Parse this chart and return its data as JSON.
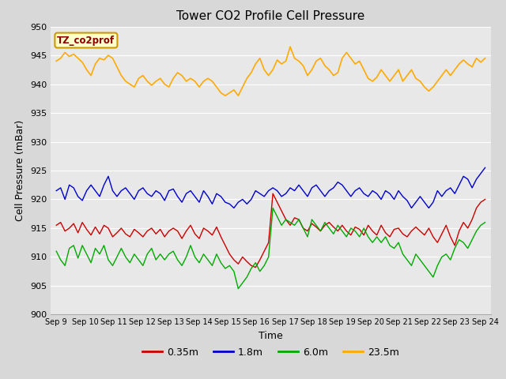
{
  "title": "Tower CO2 Profile Cell Pressure",
  "xlabel": "Time",
  "ylabel": "Cell Pressure (mBar)",
  "ylim": [
    900,
    950
  ],
  "yticks": [
    900,
    905,
    910,
    915,
    920,
    925,
    930,
    935,
    940,
    945,
    950
  ],
  "xtick_labels": [
    "Sep 9",
    "Sep 10",
    "Sep 11",
    "Sep 12",
    "Sep 13",
    "Sep 14",
    "Sep 15",
    "Sep 16",
    "Sep 17",
    "Sep 18",
    "Sep 19",
    "Sep 20",
    "Sep 21",
    "Sep 22",
    "Sep 23",
    "Sep 24"
  ],
  "colors": {
    "0.35m": "#cc0000",
    "1.8m": "#0000cc",
    "6.0m": "#00aa00",
    "23.5m": "#ffaa00"
  },
  "legend_label": "TZ_co2prof",
  "legend_box_color": "#ffffcc",
  "legend_box_edge": "#cc9900",
  "background_color": "#e8e8e8",
  "grid_color": "#ffffff",
  "series_35": [
    915.5,
    916.0,
    914.5,
    915.0,
    915.8,
    914.2,
    916.0,
    914.8,
    913.8,
    915.2,
    914.0,
    915.5,
    915.0,
    913.5,
    914.2,
    915.0,
    914.0,
    913.5,
    914.8,
    914.2,
    913.5,
    914.5,
    915.0,
    914.0,
    914.8,
    913.5,
    914.5,
    915.0,
    914.5,
    913.2,
    914.5,
    915.5,
    914.0,
    913.2,
    915.0,
    914.5,
    913.8,
    915.2,
    913.5,
    912.0,
    910.5,
    909.5,
    908.8,
    910.0,
    909.2,
    908.5,
    908.2,
    909.5,
    911.0,
    912.5,
    921.0,
    919.5,
    918.0,
    916.5,
    915.5,
    916.8,
    916.5,
    915.0,
    914.5,
    915.8,
    915.2,
    914.5,
    915.5,
    916.0,
    915.2,
    914.5,
    915.5,
    914.5,
    913.8,
    915.2,
    914.8,
    913.8,
    915.5,
    914.5,
    913.8,
    915.5,
    914.2,
    913.5,
    914.8,
    915.0,
    914.0,
    913.5,
    914.5,
    915.2,
    914.5,
    913.8,
    915.0,
    913.5,
    912.5,
    914.0,
    915.5,
    913.5,
    912.0,
    914.5,
    916.0,
    915.0,
    916.5,
    918.5,
    919.5,
    920.0
  ],
  "series_18": [
    921.5,
    922.0,
    920.0,
    922.5,
    922.0,
    920.5,
    919.8,
    921.5,
    922.5,
    921.5,
    920.5,
    922.5,
    924.0,
    921.5,
    920.5,
    921.5,
    922.0,
    921.0,
    920.0,
    921.5,
    922.0,
    921.0,
    920.5,
    921.5,
    921.0,
    919.8,
    921.5,
    921.8,
    920.5,
    919.5,
    921.0,
    921.5,
    920.5,
    919.5,
    921.5,
    920.5,
    919.2,
    921.0,
    920.5,
    919.5,
    919.2,
    918.5,
    919.5,
    920.0,
    919.2,
    920.0,
    921.5,
    921.0,
    920.5,
    921.5,
    922.0,
    921.5,
    920.5,
    921.0,
    922.0,
    921.5,
    922.5,
    921.5,
    920.5,
    922.0,
    922.5,
    921.5,
    920.5,
    921.5,
    922.0,
    923.0,
    922.5,
    921.5,
    920.5,
    921.5,
    922.0,
    921.0,
    920.5,
    921.5,
    921.0,
    920.0,
    921.5,
    921.0,
    920.0,
    921.5,
    920.5,
    919.8,
    918.5,
    919.5,
    920.5,
    919.5,
    918.5,
    919.5,
    921.5,
    920.5,
    921.5,
    922.0,
    921.0,
    922.5,
    924.0,
    923.5,
    922.0,
    923.5,
    924.5,
    925.5
  ],
  "series_60": [
    911.0,
    909.5,
    908.5,
    911.5,
    912.0,
    909.8,
    912.0,
    910.5,
    909.0,
    911.5,
    910.5,
    912.0,
    909.5,
    908.5,
    910.0,
    911.5,
    910.0,
    909.0,
    910.5,
    909.5,
    908.5,
    910.5,
    911.5,
    909.5,
    910.5,
    909.5,
    910.5,
    911.0,
    909.5,
    908.5,
    910.0,
    912.0,
    910.0,
    909.0,
    910.5,
    909.5,
    908.5,
    910.5,
    909.0,
    908.0,
    908.5,
    907.5,
    904.5,
    905.5,
    906.5,
    908.0,
    909.0,
    907.5,
    908.5,
    910.0,
    918.5,
    917.0,
    915.5,
    916.5,
    916.0,
    915.5,
    916.5,
    915.0,
    913.5,
    916.5,
    915.5,
    914.5,
    916.0,
    915.0,
    914.0,
    915.5,
    914.5,
    913.5,
    915.0,
    914.5,
    913.5,
    915.0,
    913.5,
    912.5,
    913.5,
    912.5,
    913.5,
    912.0,
    911.5,
    912.5,
    910.5,
    909.5,
    908.5,
    910.5,
    909.5,
    908.5,
    907.5,
    906.5,
    908.5,
    910.0,
    910.5,
    909.5,
    911.5,
    913.0,
    912.5,
    911.5,
    913.0,
    914.5,
    915.5,
    916.0
  ],
  "series_235": [
    944.0,
    944.5,
    945.5,
    944.8,
    945.2,
    944.5,
    943.8,
    942.5,
    941.5,
    943.5,
    944.5,
    944.2,
    945.0,
    944.5,
    943.0,
    941.5,
    940.5,
    940.0,
    939.5,
    941.0,
    941.5,
    940.5,
    939.8,
    940.5,
    941.0,
    940.0,
    939.5,
    941.0,
    942.0,
    941.5,
    940.5,
    941.0,
    940.5,
    939.5,
    940.5,
    941.0,
    940.5,
    939.5,
    938.5,
    938.0,
    938.5,
    939.0,
    938.0,
    939.5,
    941.0,
    942.0,
    943.5,
    944.5,
    942.5,
    941.5,
    942.5,
    944.2,
    943.5,
    944.0,
    946.5,
    944.5,
    944.0,
    943.2,
    941.5,
    942.5,
    944.0,
    944.5,
    943.2,
    942.5,
    941.5,
    942.0,
    944.5,
    945.5,
    944.5,
    943.5,
    944.0,
    942.5,
    941.0,
    940.5,
    941.2,
    942.5,
    941.5,
    940.5,
    941.5,
    942.5,
    940.5,
    941.5,
    942.5,
    941.0,
    940.5,
    939.5,
    938.8,
    939.5,
    940.5,
    941.5,
    942.5,
    941.5,
    942.5,
    943.5,
    944.2,
    943.5,
    943.0,
    944.5,
    943.8,
    944.5
  ]
}
